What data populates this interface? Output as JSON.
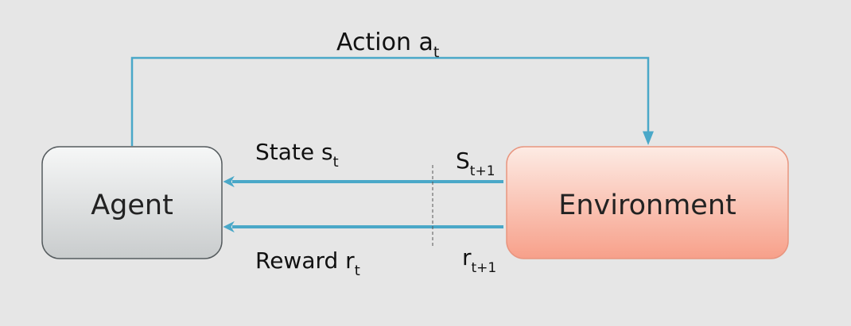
{
  "colors": {
    "background": "#e6e6e6",
    "arrow": "#4aa8c8",
    "agent_fill_top": "#f6f7f7",
    "agent_fill_bottom": "#c9cccd",
    "agent_border": "#555b5e",
    "environment_fill_top": "#fdebe4",
    "environment_fill_bottom": "#f7a08a",
    "environment_border": "#e8957f",
    "divider": "#555555"
  },
  "nodes": {
    "agent": {
      "label": "Agent"
    },
    "environment": {
      "label": "Environment"
    }
  },
  "edges": {
    "action": {
      "label": "Action a",
      "subscript": "t"
    },
    "state": {
      "label": "State s",
      "subscript": "t"
    },
    "reward": {
      "label": "Reward r",
      "subscript": "t"
    },
    "next_state": {
      "label": "S",
      "subscript": "t+1"
    },
    "next_reward": {
      "label": "r",
      "subscript": "t+1"
    }
  }
}
